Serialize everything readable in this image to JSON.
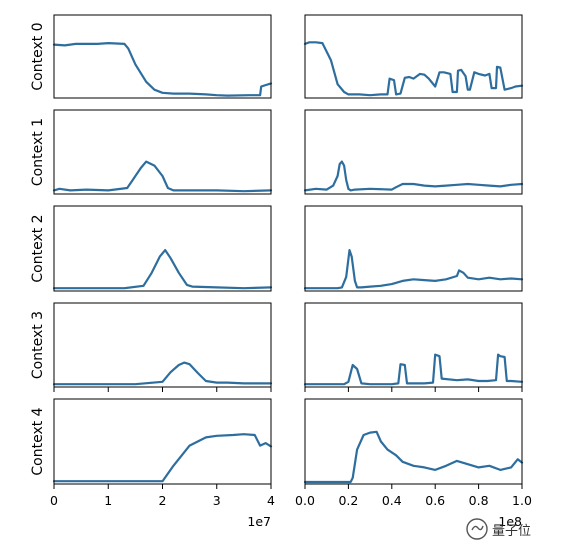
{
  "figure": {
    "row_labels": [
      "Context 0",
      "Context 1",
      "Context 2",
      "Context 3",
      "Context 4"
    ],
    "left_x_ticks": [
      "0",
      "1",
      "2",
      "3",
      "4"
    ],
    "left_x_multiplier": "1e7",
    "right_x_ticks": [
      "0.0",
      "0.2",
      "0.4",
      "0.6",
      "0.8",
      "1.0"
    ],
    "right_x_multiplier": "1e8",
    "line_color": "#2e6e9e"
  },
  "watermark": {
    "text": "量子位"
  },
  "chart_data": [
    {
      "type": "line",
      "row_label": "Context 0",
      "xlim": [
        0,
        40000000
      ],
      "ylim": [
        0,
        1
      ],
      "series": [
        {
          "x": [
            0,
            2000000,
            4000000,
            8000000,
            10000000,
            13000000,
            13700000,
            15000000,
            17000000,
            18500000,
            20000000,
            22000000,
            25000000,
            28000000,
            30000000,
            32000000,
            36000000,
            38000000,
            38200000,
            40000000
          ],
          "y": [
            0.65,
            0.64,
            0.66,
            0.66,
            0.67,
            0.66,
            0.6,
            0.4,
            0.18,
            0.08,
            0.04,
            0.03,
            0.03,
            0.02,
            0.01,
            0.005,
            0.01,
            0.01,
            0.12,
            0.16
          ]
        }
      ]
    },
    {
      "type": "line",
      "row_label": "Context 0",
      "xlim": [
        0,
        100000000
      ],
      "ylim": [
        0,
        1
      ],
      "series": [
        {
          "x": [
            0,
            2000000,
            5000000,
            8000000,
            12000000,
            15000000,
            18000000,
            20000000,
            25000000,
            30000000,
            35000000,
            38000000,
            39000000,
            41000000,
            42000000,
            44000000,
            46000000,
            48000000,
            50000000,
            53000000,
            55000000,
            57000000,
            60000000,
            62000000,
            64000000,
            67000000,
            68000000,
            70000000,
            70500000,
            72000000,
            74000000,
            75000000,
            76000000,
            78000000,
            80000000,
            83000000,
            85000000,
            86000000,
            88000000,
            88500000,
            90000000,
            92000000,
            95000000,
            97000000,
            100000000
          ],
          "y": [
            0.66,
            0.68,
            0.68,
            0.67,
            0.45,
            0.15,
            0.05,
            0.02,
            0.02,
            0.01,
            0.02,
            0.02,
            0.22,
            0.2,
            0.02,
            0.03,
            0.23,
            0.24,
            0.22,
            0.28,
            0.27,
            0.22,
            0.12,
            0.3,
            0.3,
            0.28,
            0.05,
            0.05,
            0.32,
            0.33,
            0.25,
            0.08,
            0.08,
            0.3,
            0.28,
            0.26,
            0.28,
            0.1,
            0.1,
            0.37,
            0.36,
            0.08,
            0.1,
            0.12,
            0.13
          ]
        }
      ]
    },
    {
      "type": "line",
      "row_label": "Context 1",
      "xlim": [
        0,
        40000000
      ],
      "ylim": [
        0,
        1
      ],
      "series": [
        {
          "x": [
            0,
            1000000,
            3000000,
            6000000,
            10000000,
            13500000,
            14500000,
            16000000,
            17000000,
            18500000,
            20000000,
            21000000,
            22000000,
            25000000,
            30000000,
            35000000,
            40000000
          ],
          "y": [
            0.02,
            0.04,
            0.02,
            0.03,
            0.02,
            0.05,
            0.15,
            0.3,
            0.38,
            0.33,
            0.2,
            0.05,
            0.02,
            0.02,
            0.02,
            0.01,
            0.02
          ]
        }
      ]
    },
    {
      "type": "line",
      "row_label": "Context 1",
      "xlim": [
        0,
        100000000
      ],
      "ylim": [
        0,
        1
      ],
      "series": [
        {
          "x": [
            0,
            5000000,
            10000000,
            13000000,
            15000000,
            16000000,
            17000000,
            18000000,
            19000000,
            20000000,
            21000000,
            23000000,
            30000000,
            40000000,
            42000000,
            45000000,
            50000000,
            55000000,
            60000000,
            65000000,
            70000000,
            75000000,
            80000000,
            85000000,
            90000000,
            95000000,
            100000000
          ],
          "y": [
            0.02,
            0.04,
            0.03,
            0.08,
            0.2,
            0.35,
            0.38,
            0.33,
            0.15,
            0.04,
            0.02,
            0.03,
            0.04,
            0.03,
            0.06,
            0.1,
            0.1,
            0.08,
            0.07,
            0.08,
            0.09,
            0.1,
            0.09,
            0.08,
            0.07,
            0.09,
            0.1
          ]
        }
      ]
    },
    {
      "type": "line",
      "row_label": "Context 2",
      "xlim": [
        0,
        40000000
      ],
      "ylim": [
        0,
        1
      ],
      "series": [
        {
          "x": [
            0,
            5000000,
            10000000,
            13000000,
            16500000,
            18000000,
            19500000,
            20500000,
            21500000,
            23000000,
            24500000,
            25500000,
            30000000,
            35000000,
            40000000
          ],
          "y": [
            0.01,
            0.01,
            0.01,
            0.01,
            0.04,
            0.2,
            0.4,
            0.48,
            0.38,
            0.2,
            0.05,
            0.03,
            0.02,
            0.01,
            0.02
          ]
        }
      ]
    },
    {
      "type": "line",
      "row_label": "Context 2",
      "xlim": [
        0,
        100000000
      ],
      "ylim": [
        0,
        1
      ],
      "series": [
        {
          "x": [
            0,
            5000000,
            10000000,
            15000000,
            17000000,
            19000000,
            20500000,
            21500000,
            23000000,
            24000000,
            26000000,
            30000000,
            35000000,
            40000000,
            45000000,
            50000000,
            55000000,
            60000000,
            65000000,
            70000000,
            71000000,
            73000000,
            75000000,
            80000000,
            85000000,
            90000000,
            95000000,
            100000000
          ],
          "y": [
            0.01,
            0.01,
            0.01,
            0.01,
            0.02,
            0.15,
            0.48,
            0.4,
            0.1,
            0.02,
            0.02,
            0.03,
            0.04,
            0.06,
            0.1,
            0.12,
            0.11,
            0.1,
            0.12,
            0.16,
            0.23,
            0.2,
            0.14,
            0.12,
            0.14,
            0.12,
            0.13,
            0.12
          ]
        }
      ]
    },
    {
      "type": "line",
      "row_label": "Context 3",
      "xlim": [
        0,
        40000000
      ],
      "ylim": [
        0,
        1
      ],
      "series": [
        {
          "x": [
            0,
            5000000,
            10000000,
            15000000,
            20000000,
            21500000,
            23000000,
            24000000,
            25000000,
            26500000,
            28000000,
            30000000,
            32000000,
            35000000,
            40000000
          ],
          "y": [
            0.01,
            0.01,
            0.01,
            0.01,
            0.04,
            0.16,
            0.25,
            0.28,
            0.26,
            0.15,
            0.05,
            0.03,
            0.03,
            0.02,
            0.02
          ]
        }
      ]
    },
    {
      "type": "line",
      "row_label": "Context 3",
      "xlim": [
        0,
        100000000
      ],
      "ylim": [
        0,
        1
      ],
      "series": [
        {
          "x": [
            0,
            10000000,
            18000000,
            20000000,
            22000000,
            24000000,
            26000000,
            30000000,
            40000000,
            43000000,
            44000000,
            46000000,
            47000000,
            55000000,
            59000000,
            60000000,
            62000000,
            63000000,
            70000000,
            75000000,
            80000000,
            84000000,
            88000000,
            89000000,
            90000000,
            92000000,
            93000000,
            95000000,
            100000000
          ],
          "y": [
            0.01,
            0.01,
            0.01,
            0.04,
            0.25,
            0.2,
            0.02,
            0.01,
            0.01,
            0.02,
            0.26,
            0.25,
            0.02,
            0.02,
            0.03,
            0.38,
            0.36,
            0.08,
            0.06,
            0.07,
            0.05,
            0.05,
            0.06,
            0.38,
            0.36,
            0.35,
            0.05,
            0.05,
            0.04
          ]
        }
      ]
    },
    {
      "type": "line",
      "row_label": "Context 4",
      "xlim": [
        0,
        40000000
      ],
      "ylim": [
        0,
        1
      ],
      "series": [
        {
          "x": [
            0,
            10000000,
            20000000,
            22000000,
            25000000,
            28000000,
            30000000,
            33000000,
            35000000,
            37000000,
            38000000,
            39000000,
            40000000
          ],
          "y": [
            0.01,
            0.01,
            0.01,
            0.2,
            0.45,
            0.55,
            0.57,
            0.58,
            0.59,
            0.58,
            0.45,
            0.48,
            0.44
          ]
        }
      ]
    },
    {
      "type": "line",
      "row_label": "Context 4",
      "xlim": [
        0,
        100000000
      ],
      "ylim": [
        0,
        1
      ],
      "series": [
        {
          "x": [
            0,
            21000000,
            22000000,
            24000000,
            27000000,
            30000000,
            33000000,
            35000000,
            38000000,
            42000000,
            45000000,
            50000000,
            55000000,
            60000000,
            65000000,
            70000000,
            75000000,
            80000000,
            85000000,
            90000000,
            95000000,
            98000000,
            100000000
          ],
          "y": [
            0.0,
            0.0,
            0.05,
            0.4,
            0.58,
            0.61,
            0.62,
            0.5,
            0.4,
            0.33,
            0.25,
            0.2,
            0.18,
            0.15,
            0.2,
            0.26,
            0.22,
            0.18,
            0.2,
            0.15,
            0.18,
            0.28,
            0.24
          ]
        }
      ]
    }
  ]
}
